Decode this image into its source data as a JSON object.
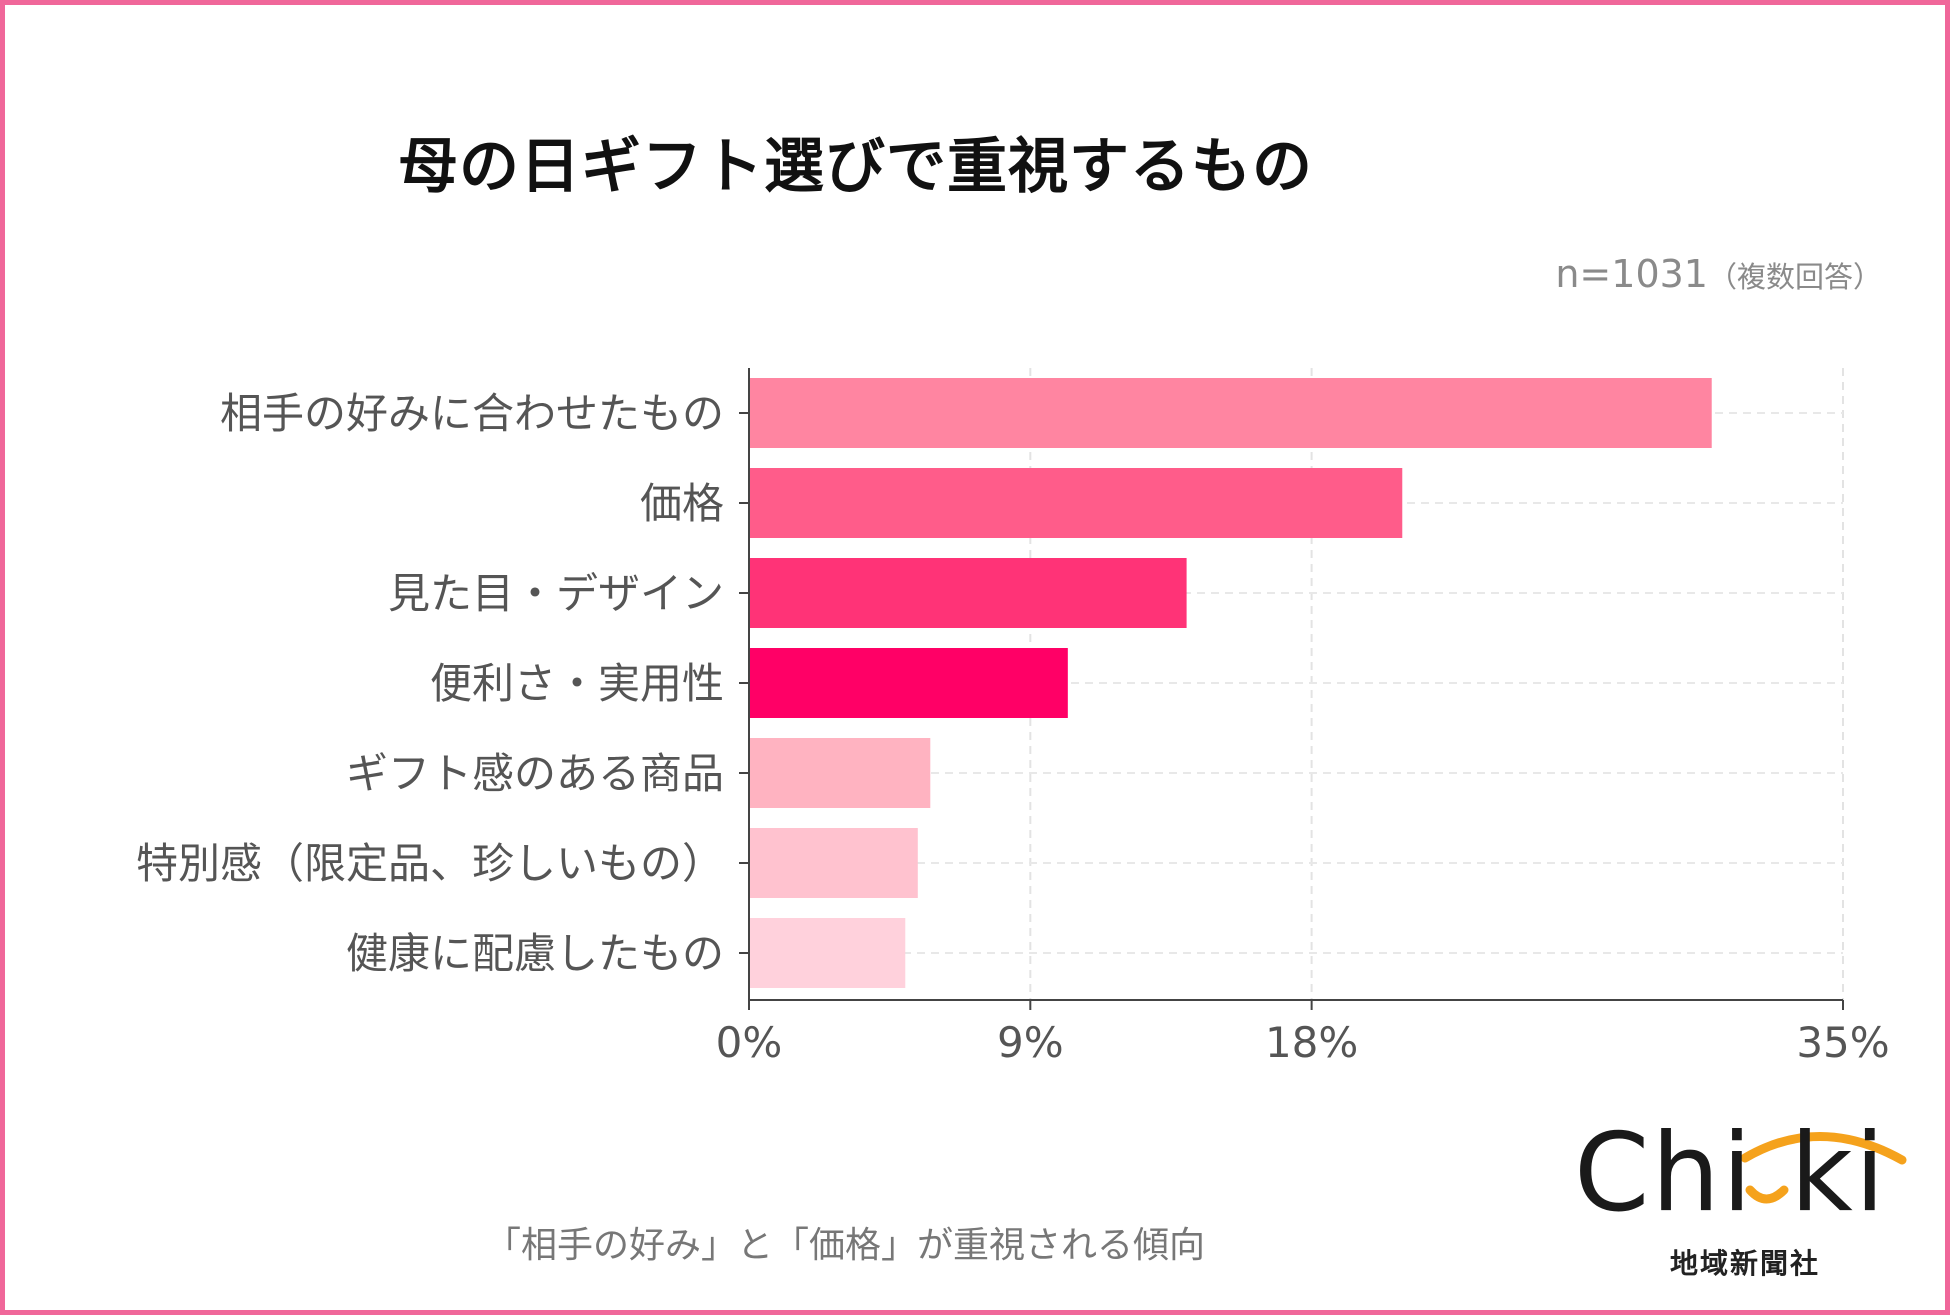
{
  "title": "母の日ギフト選びで重視するもの",
  "sample": {
    "n": "n=1031",
    "note": "（複数回答）"
  },
  "caption": "「相手の好み」と「価格」が重視される傾向",
  "logo": {
    "text": "Chi ki",
    "sub": "地域新聞社",
    "accent": "#f5a21c"
  },
  "chart_data": {
    "type": "bar",
    "orientation": "horizontal",
    "categories": [
      "相手の好みに合わせたもの",
      "価格",
      "見た目・デザイン",
      "便利さ・実用性",
      "ギフト感のある商品",
      "特別感（限定品、珍しいもの）",
      "健康に配慮したもの"
    ],
    "values": [
      30.8,
      20.9,
      14.0,
      10.2,
      5.8,
      5.4,
      5.0
    ],
    "colors": [
      "#ff85a1",
      "#ff5c8a",
      "#ff3377",
      "#ff0066",
      "#ffb3c1",
      "#ffc2cf",
      "#ffd1dc"
    ],
    "xlim": [
      0,
      35
    ],
    "xticks": [
      0,
      9,
      18,
      35
    ],
    "xtick_labels": [
      "0%",
      "9%",
      "18%",
      "35%"
    ],
    "grid": true,
    "xlabel": "",
    "ylabel": ""
  }
}
